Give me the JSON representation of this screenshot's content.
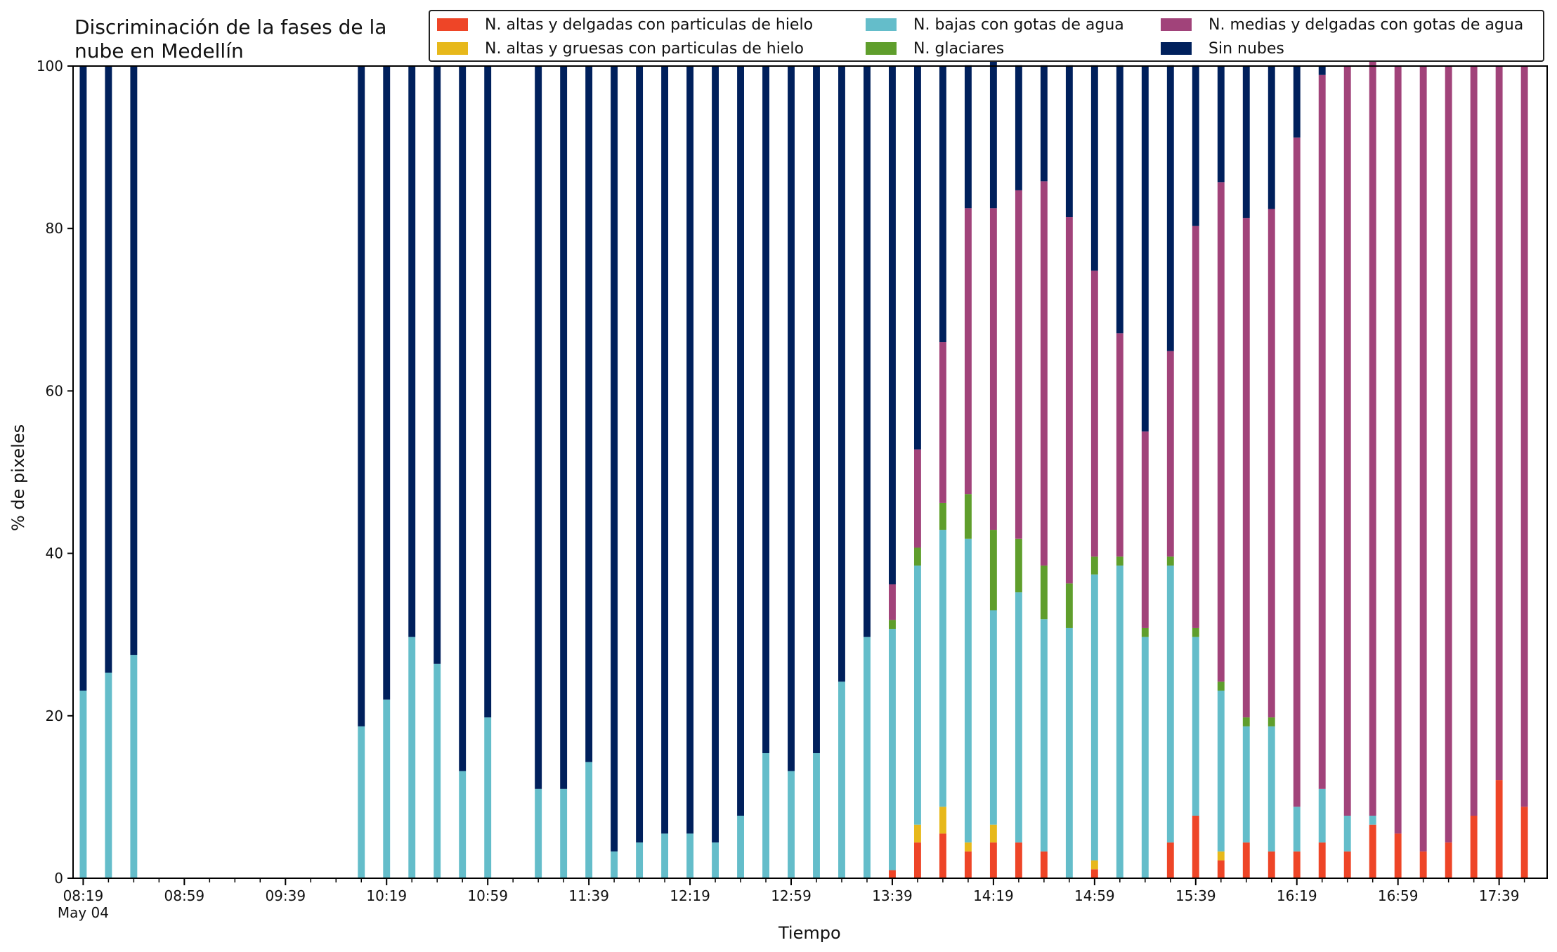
{
  "chart_data": {
    "type": "bar",
    "stacked": true,
    "title_lines": [
      "Discriminación de la fases de la",
      "nube en Medellín"
    ],
    "xlabel": "Tiempo",
    "ylabel": "% de pixeles",
    "ylim": [
      0,
      100
    ],
    "yticks": [
      0,
      20,
      40,
      60,
      80,
      100
    ],
    "x_start": "08:19",
    "x_end": "17:54",
    "x_step_minutes": 5,
    "x_ticks_major": [
      "08:19",
      "08:59",
      "09:39",
      "10:19",
      "10:59",
      "11:39",
      "12:19",
      "12:59",
      "13:39",
      "14:19",
      "14:59",
      "15:39",
      "16:19",
      "16:59",
      "17:39"
    ],
    "x_date_label": "May 04",
    "legend_position": "top-right",
    "grid": false,
    "categories": [
      "08:19",
      "08:29",
      "08:39",
      "10:09",
      "10:19",
      "10:29",
      "10:39",
      "10:49",
      "10:59",
      "11:19",
      "11:29",
      "11:39",
      "11:49",
      "11:59",
      "12:09",
      "12:19",
      "12:29",
      "12:39",
      "12:49",
      "12:59",
      "13:09",
      "13:19",
      "13:29",
      "13:39",
      "13:49",
      "13:59",
      "14:09",
      "14:19",
      "14:29",
      "14:39",
      "14:49",
      "14:59",
      "15:09",
      "15:19",
      "15:29",
      "15:39",
      "15:49",
      "15:59",
      "16:09",
      "16:19",
      "16:29",
      "16:39",
      "16:49",
      "16:59",
      "17:09",
      "17:19",
      "17:29",
      "17:39",
      "17:49"
    ],
    "series": [
      {
        "name": "N. altas y delgadas con particulas de hielo",
        "color": "#ee4527",
        "values": [
          0,
          0,
          0,
          0,
          0,
          0,
          0,
          0,
          0,
          0,
          0,
          0,
          0,
          0,
          0,
          0,
          0,
          0,
          0,
          0,
          0,
          0,
          0,
          1,
          4.4,
          5.5,
          3.3,
          4.4,
          4.4,
          3.3,
          0,
          1.1,
          0,
          0,
          4.4,
          7.7,
          2.2,
          4.4,
          3.3,
          3.3,
          4.4,
          3.3,
          6.6,
          5.5,
          3.3,
          4.4,
          7.7,
          12.1,
          8.8
        ]
      },
      {
        "name": "N. altas y gruesas con particulas de hielo",
        "color": "#e7b81b",
        "values": [
          0,
          0,
          0,
          0,
          0,
          0,
          0,
          0,
          0,
          0,
          0,
          0,
          0,
          0,
          0,
          0,
          0,
          0,
          0,
          0,
          0,
          0,
          0,
          0,
          2.2,
          3.3,
          1.1,
          2.2,
          0,
          0,
          0,
          1.1,
          0,
          0,
          0,
          0,
          1.1,
          0,
          0,
          0,
          0,
          0,
          0,
          0,
          0,
          0,
          0,
          0,
          0
        ]
      },
      {
        "name": "N. bajas con gotas de agua",
        "color": "#64bdca",
        "values": [
          23.1,
          25.3,
          27.5,
          18.7,
          22,
          29.7,
          26.4,
          13.2,
          19.8,
          11,
          11,
          14.3,
          3.3,
          4.4,
          5.5,
          5.5,
          4.4,
          7.7,
          15.4,
          13.2,
          15.4,
          24.2,
          29.7,
          29.7,
          31.9,
          34.1,
          37.4,
          26.4,
          30.8,
          28.6,
          30.8,
          35.2,
          38.5,
          29.7,
          34.1,
          22,
          19.8,
          14.3,
          15.4,
          5.5,
          6.6,
          4.4,
          1.1,
          0,
          0,
          0,
          0,
          0,
          0
        ]
      },
      {
        "name": "N. glaciares",
        "color": "#5f9e2c",
        "values": [
          0,
          0,
          0,
          0,
          0,
          0,
          0,
          0,
          0,
          0,
          0,
          0,
          0,
          0,
          0,
          0,
          0,
          0,
          0,
          0,
          0,
          0,
          0,
          1.1,
          2.2,
          3.3,
          5.5,
          9.9,
          6.6,
          6.6,
          5.5,
          2.2,
          1.1,
          1.1,
          1.1,
          1.1,
          1.1,
          1.1,
          1.1,
          0,
          0,
          0,
          0,
          0,
          0,
          0,
          0,
          0,
          0
        ]
      },
      {
        "name": "N. medias y delgadas con gotas de agua",
        "color": "#a1437a",
        "values": [
          0,
          0,
          0,
          0,
          0,
          0,
          0,
          0,
          0,
          0,
          0,
          0,
          0,
          0,
          0,
          0,
          0,
          0,
          0,
          0,
          0,
          0,
          0,
          4.4,
          12.1,
          19.8,
          35.2,
          39.6,
          42.9,
          47.3,
          45.1,
          35.2,
          27.5,
          24.2,
          25.3,
          49.5,
          61.5,
          61.5,
          62.6,
          82.4,
          87.9,
          92.3,
          93.4,
          94.5,
          96.7,
          95.6,
          92.3,
          87.9,
          91.2
        ]
      },
      {
        "name": "Sin nubes",
        "color": "#00205c",
        "values": [
          76.9,
          74.7,
          72.5,
          81.3,
          78,
          70.3,
          73.6,
          86.8,
          80.2,
          89,
          89,
          85.7,
          96.7,
          95.6,
          94.5,
          94.5,
          95.6,
          92.3,
          84.6,
          86.8,
          84.6,
          75.8,
          70.3,
          63.8,
          47.2,
          34,
          17.6,
          19.8,
          15.4,
          14.3,
          18.7,
          25.3,
          33,
          45,
          35.2,
          19.8,
          14.3,
          18.7,
          17.6,
          8.8,
          1.1,
          0,
          0,
          0,
          0,
          0,
          0,
          0,
          0
        ]
      }
    ]
  }
}
